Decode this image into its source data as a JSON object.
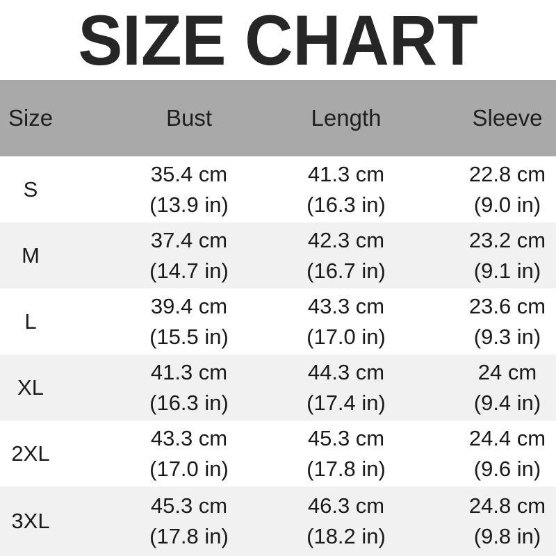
{
  "title": "SIZE CHART",
  "colors": {
    "header_bg": "#a9a9a9",
    "alt_row_bg": "#f1f1f1",
    "text": "#1b1b1b",
    "title_text": "#262626"
  },
  "table": {
    "columns": [
      "Size",
      "Bust",
      "Length",
      "Sleeve"
    ],
    "rows": [
      {
        "size": "S",
        "bust": [
          "35.4 cm",
          "(13.9 in)"
        ],
        "length": [
          "41.3 cm",
          "(16.3 in)"
        ],
        "sleeve": [
          "22.8 cm",
          "(9.0 in)"
        ]
      },
      {
        "size": "M",
        "bust": [
          "37.4 cm",
          "(14.7 in)"
        ],
        "length": [
          "42.3 cm",
          "(16.7 in)"
        ],
        "sleeve": [
          "23.2 cm",
          "(9.1 in)"
        ]
      },
      {
        "size": "L",
        "bust": [
          "39.4 cm",
          "(15.5 in)"
        ],
        "length": [
          "43.3 cm",
          "(17.0 in)"
        ],
        "sleeve": [
          "23.6 cm",
          "(9.3 in)"
        ]
      },
      {
        "size": "XL",
        "bust": [
          "41.3 cm",
          "(16.3 in)"
        ],
        "length": [
          "44.3 cm",
          "(17.4 in)"
        ],
        "sleeve": [
          "24 cm",
          "(9.4 in)"
        ]
      },
      {
        "size": "2XL",
        "bust": [
          "43.3 cm",
          "(17.0 in)"
        ],
        "length": [
          "45.3 cm",
          "(17.8 in)"
        ],
        "sleeve": [
          "24.4 cm",
          "(9.6 in)"
        ]
      },
      {
        "size": "3XL",
        "bust": [
          "45.3 cm",
          "(17.8 in)"
        ],
        "length": [
          "46.3 cm",
          "(18.2 in)"
        ],
        "sleeve": [
          "24.8 cm",
          "(9.8 in)"
        ]
      }
    ]
  },
  "chart_data": {
    "type": "table",
    "title": "SIZE CHART",
    "columns": [
      "Size",
      "Bust",
      "Length",
      "Sleeve"
    ],
    "units": {
      "primary": "cm",
      "secondary": "in"
    },
    "rows": [
      {
        "size": "S",
        "bust_cm": 35.4,
        "bust_in": 13.9,
        "length_cm": 41.3,
        "length_in": 16.3,
        "sleeve_cm": 22.8,
        "sleeve_in": 9.0
      },
      {
        "size": "M",
        "bust_cm": 37.4,
        "bust_in": 14.7,
        "length_cm": 42.3,
        "length_in": 16.7,
        "sleeve_cm": 23.2,
        "sleeve_in": 9.1
      },
      {
        "size": "L",
        "bust_cm": 39.4,
        "bust_in": 15.5,
        "length_cm": 43.3,
        "length_in": 17.0,
        "sleeve_cm": 23.6,
        "sleeve_in": 9.3
      },
      {
        "size": "XL",
        "bust_cm": 41.3,
        "bust_in": 16.3,
        "length_cm": 44.3,
        "length_in": 17.4,
        "sleeve_cm": 24,
        "sleeve_in": 9.4
      },
      {
        "size": "2XL",
        "bust_cm": 43.3,
        "bust_in": 17.0,
        "length_cm": 45.3,
        "length_in": 17.8,
        "sleeve_cm": 24.4,
        "sleeve_in": 9.6
      },
      {
        "size": "3XL",
        "bust_cm": 45.3,
        "bust_in": 17.8,
        "length_cm": 46.3,
        "length_in": 18.2,
        "sleeve_cm": 24.8,
        "sleeve_in": 9.8
      }
    ]
  }
}
